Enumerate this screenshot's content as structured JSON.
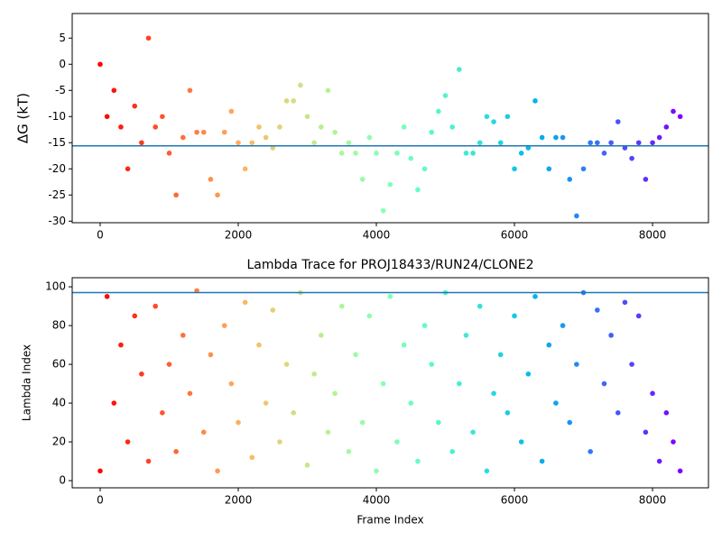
{
  "chart_data": [
    {
      "type": "scatter",
      "ylabel": "ΔG (kT)",
      "colormap": "rainbow_r",
      "x": [
        0,
        100,
        200,
        300,
        400,
        500,
        600,
        700,
        800,
        900,
        1000,
        1100,
        1200,
        1300,
        1400,
        1500,
        1600,
        1700,
        1800,
        1900,
        2000,
        2100,
        2200,
        2300,
        2400,
        2500,
        2600,
        2700,
        2800,
        2900,
        3000,
        3100,
        3200,
        3300,
        3400,
        3500,
        3600,
        3700,
        3800,
        3900,
        4000,
        4100,
        4200,
        4300,
        4400,
        4500,
        4600,
        4700,
        4800,
        4900,
        5000,
        5100,
        5200,
        5300,
        5400,
        5500,
        5600,
        5700,
        5800,
        5900,
        6000,
        6100,
        6200,
        6300,
        6400,
        6500,
        6600,
        6700,
        6800,
        6900,
        7000,
        7100,
        7200,
        7300,
        7400,
        7500,
        7600,
        7700,
        7800,
        7900,
        8000,
        8100,
        8200,
        8300,
        8400
      ],
      "values": [
        0,
        -10,
        -5,
        -12,
        -20,
        -8,
        -15,
        5,
        -12,
        -10,
        -17,
        -25,
        -14,
        -5,
        -13,
        -13,
        -22,
        -25,
        -13,
        -9,
        -15,
        -20,
        -15,
        -12,
        -14,
        -16,
        -12,
        -7,
        -7,
        -4,
        -10,
        -15,
        -12,
        -5,
        -13,
        -17,
        -15,
        -17,
        -22,
        -14,
        -17,
        -28,
        -23,
        -17,
        -12,
        -18,
        -24,
        -20,
        -13,
        -9,
        -6,
        -12,
        -1,
        -17,
        -17,
        -15,
        -10,
        -11,
        -15,
        -10,
        -20,
        -17,
        -16,
        -7,
        -14,
        -20,
        -14,
        -14,
        -22,
        -29,
        -20,
        -15,
        -15,
        -17,
        -15,
        -11,
        -16,
        -18,
        -15,
        -22,
        -15,
        -14,
        -12,
        -9,
        -10
      ],
      "hline": -15.6,
      "hline_color": "#1f77b4",
      "xlim": [
        -405,
        8810
      ],
      "ylim": [
        -30.3,
        9.7
      ],
      "xticks": [
        0,
        2000,
        4000,
        6000,
        8000
      ],
      "yticks": [
        -30,
        -25,
        -20,
        -15,
        -10,
        -5,
        0,
        5
      ]
    },
    {
      "type": "scatter",
      "title": "Lambda Trace for PROJ18433/RUN24/CLONE2",
      "xlabel": "Frame Index",
      "ylabel": "Lambda Index",
      "colormap": "rainbow_r",
      "x": [
        0,
        100,
        200,
        300,
        400,
        500,
        600,
        700,
        800,
        900,
        1000,
        1100,
        1200,
        1300,
        1400,
        1500,
        1600,
        1700,
        1800,
        1900,
        2000,
        2100,
        2200,
        2300,
        2400,
        2500,
        2600,
        2700,
        2800,
        2900,
        3000,
        3100,
        3200,
        3300,
        3400,
        3500,
        3600,
        3700,
        3800,
        3900,
        4000,
        4100,
        4200,
        4300,
        4400,
        4500,
        4600,
        4700,
        4800,
        4900,
        5000,
        5100,
        5200,
        5300,
        5400,
        5500,
        5600,
        5700,
        5800,
        5900,
        6000,
        6100,
        6200,
        6300,
        6400,
        6500,
        6600,
        6700,
        6800,
        6900,
        7000,
        7100,
        7200,
        7300,
        7400,
        7500,
        7600,
        7700,
        7800,
        7900,
        8000,
        8100,
        8200,
        8300,
        8400
      ],
      "values": [
        5,
        95,
        40,
        70,
        20,
        85,
        55,
        10,
        90,
        35,
        60,
        15,
        75,
        45,
        98,
        25,
        65,
        5,
        80,
        50,
        30,
        92,
        12,
        70,
        40,
        88,
        20,
        60,
        35,
        97,
        8,
        55,
        75,
        25,
        45,
        90,
        15,
        65,
        30,
        85,
        5,
        50,
        95,
        20,
        70,
        40,
        10,
        80,
        60,
        30,
        97,
        15,
        50,
        75,
        25,
        90,
        5,
        45,
        65,
        35,
        85,
        20,
        55,
        95,
        10,
        70,
        40,
        80,
        30,
        60,
        97,
        15,
        88,
        50,
        75,
        35,
        92,
        60,
        85,
        25,
        45,
        10,
        35,
        20,
        5
      ],
      "hline": 97,
      "hline_color": "#1f77b4",
      "xlim": [
        -405,
        8810
      ],
      "ylim": [
        -3.7,
        104.7
      ],
      "xticks": [
        0,
        2000,
        4000,
        6000,
        8000
      ],
      "yticks": [
        0,
        20,
        40,
        60,
        80,
        100
      ]
    }
  ]
}
